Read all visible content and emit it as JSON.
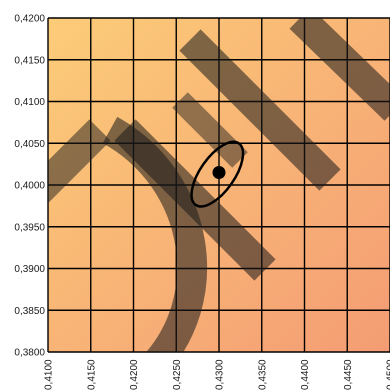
{
  "chart_data": {
    "type": "scatter",
    "title": "",
    "xlabel": "",
    "ylabel": "",
    "xlim": [
      0.41,
      0.45
    ],
    "ylim": [
      0.38,
      0.42
    ],
    "grid": true,
    "x_ticks": [
      0.41,
      0.415,
      0.42,
      0.425,
      0.43,
      0.435,
      0.44,
      0.445,
      0.45
    ],
    "y_ticks": [
      0.38,
      0.385,
      0.39,
      0.395,
      0.4,
      0.405,
      0.41,
      0.415,
      0.42
    ],
    "x_tick_labels": [
      "0,4100",
      "0,4150",
      "0,4200",
      "0,4250",
      "0,4300",
      "0,4350",
      "0,4400",
      "0,4450",
      "0,4500"
    ],
    "y_tick_labels": [
      "0,3800",
      "0,3850",
      "0,3900",
      "0,3950",
      "0,4000",
      "0,4050",
      "0,4100",
      "0,4150",
      "0,4200"
    ],
    "point": {
      "x": 0.43,
      "y": 0.4015
    },
    "ellipse": {
      "center": {
        "x": 0.4298,
        "y": 0.4013
      },
      "semi_axis_x": 0.002,
      "semi_axis_y": 0.0045,
      "rotation_deg": 35
    },
    "background": {
      "top_left_color": "#FCCC78",
      "bottom_right_color": "#F49C74"
    },
    "watermark": {
      "text": "DEV",
      "color": "#1a1a1a",
      "opacity": 0.55
    }
  }
}
